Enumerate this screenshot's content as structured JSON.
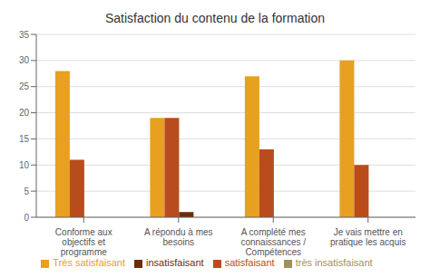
{
  "chart_data": {
    "type": "bar",
    "title": "Satisfaction du contenu de la formation",
    "categories": [
      "Conforme aux\nobjectifs et\nprogramme",
      "A répondu à mes\nbesoins",
      "A complété mes\nconnaissances /\nCompétences",
      "Je vais mettre en\npratique les acquis"
    ],
    "series": [
      {
        "name": "Très satisfaisant",
        "color": "#E8A020",
        "values": [
          28,
          19,
          27,
          30
        ]
      },
      {
        "name": "satisfaisant",
        "color": "#B84C1C",
        "values": [
          11,
          19,
          13,
          10
        ]
      },
      {
        "name": "insatisfaisant",
        "color": "#6B2E08",
        "values": [
          0,
          1,
          0,
          0
        ]
      },
      {
        "name": "très insatisfaisant",
        "color": "#A09060",
        "values": [
          0,
          0,
          0,
          0
        ]
      }
    ],
    "ylim": [
      0,
      35
    ],
    "yticks": [
      0,
      5,
      10,
      15,
      20,
      25,
      30,
      35
    ],
    "grid": true,
    "legend": "bottom"
  }
}
